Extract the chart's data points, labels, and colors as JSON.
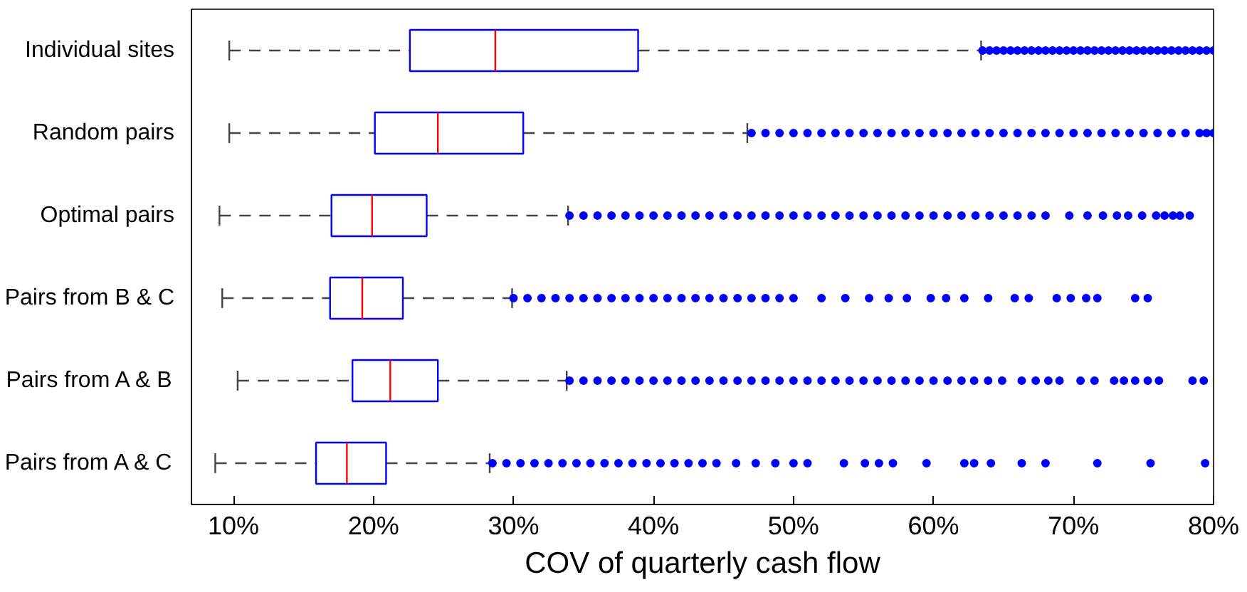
{
  "chart_data": {
    "type": "box",
    "orientation": "horizontal",
    "xlabel": "COV of quarterly cash flow",
    "categories": [
      "Individual sites",
      "Random pairs",
      "Optimal pairs",
      "Pairs from B & C",
      "Pairs from A & B",
      "Pairs from A & C"
    ],
    "xlim": [
      7,
      80
    ],
    "xticks": [
      {
        "value": 10,
        "label": "10%"
      },
      {
        "value": 20,
        "label": "20%"
      },
      {
        "value": 30,
        "label": "30%"
      },
      {
        "value": 40,
        "label": "40%"
      },
      {
        "value": 50,
        "label": "50%"
      },
      {
        "value": 60,
        "label": "60%"
      },
      {
        "value": 70,
        "label": "70%"
      },
      {
        "value": 80,
        "label": "80%"
      }
    ],
    "grid": false,
    "marker": "circle",
    "series": [
      {
        "color": "#0000ff",
        "boxes": [
          {
            "low": 9.7,
            "q1": 22.6,
            "median": 28.7,
            "q3": 38.9,
            "high": 63.4,
            "outliers": [
              63.5,
              64,
              64.5,
              65,
              65.5,
              66,
              66.5,
              67,
              67.5,
              68,
              68.5,
              69,
              69.5,
              70,
              70.5,
              71,
              71.5,
              72,
              72.5,
              73,
              73.5,
              74,
              74.5,
              75,
              75.5,
              76,
              76.5,
              77,
              77.5,
              78,
              78.5,
              79,
              79.5,
              80
            ]
          },
          {
            "low": 9.7,
            "q1": 20.1,
            "median": 24.6,
            "q3": 30.7,
            "high": 46.7,
            "outliers": [
              47,
              48,
              49,
              50,
              51,
              52,
              53,
              54,
              55,
              56,
              57,
              58,
              59,
              60,
              61,
              62,
              63,
              64,
              65,
              66,
              67,
              68,
              69,
              70,
              71,
              72,
              73,
              74,
              75,
              76,
              77,
              78,
              79,
              79.5,
              80
            ]
          },
          {
            "low": 9.0,
            "q1": 17.0,
            "median": 19.9,
            "q3": 23.8,
            "high": 33.9,
            "outliers": [
              34,
              35,
              36,
              37,
              38,
              39,
              40,
              41,
              42,
              43,
              44,
              45,
              46,
              47,
              48,
              49,
              50,
              51,
              52,
              53,
              54,
              55,
              56,
              57,
              58,
              59,
              60,
              61,
              62,
              63,
              64,
              65,
              66,
              67,
              68.0,
              69.7,
              71.0,
              72.1,
              73.1,
              73.9,
              74.9,
              75.9,
              76.5,
              77.1,
              77.6,
              78.3
            ]
          },
          {
            "low": 9.2,
            "q1": 16.9,
            "median": 19.2,
            "q3": 22.1,
            "high": 29.9,
            "outliers": [
              30,
              31,
              32,
              33,
              34,
              35,
              36,
              37,
              38,
              39,
              40,
              41,
              42,
              43,
              44,
              45,
              46,
              47,
              48,
              49,
              50.0,
              52.0,
              53.7,
              55.4,
              56.8,
              58.1,
              59.8,
              60.9,
              62.2,
              63.9,
              65.8,
              66.8,
              68.8,
              69.8,
              70.9,
              71.7,
              74.4,
              75.3
            ]
          },
          {
            "low": 10.3,
            "q1": 18.5,
            "median": 21.2,
            "q3": 24.6,
            "high": 33.8,
            "outliers": [
              34,
              35,
              36,
              37,
              38,
              39,
              40,
              41,
              42,
              43,
              44,
              45,
              46,
              47,
              48,
              49,
              50,
              51,
              52,
              53,
              54,
              55,
              56,
              57,
              58,
              59,
              60,
              61,
              62,
              62.9,
              63.9,
              64.9,
              66.3,
              67.3,
              68.2,
              69.0,
              70.5,
              71.5,
              72.9,
              73.6,
              74.4,
              75.3,
              76.1,
              78.5,
              79.3
            ]
          },
          {
            "low": 8.7,
            "q1": 15.9,
            "median": 18.1,
            "q3": 20.9,
            "high": 28.3,
            "outliers": [
              28.5,
              29.5,
              30.5,
              31.5,
              32.5,
              33.5,
              34.5,
              35.5,
              36.5,
              37.5,
              38.5,
              39.5,
              40.5,
              41.5,
              42.5,
              43.5,
              44.5,
              45.9,
              47.3,
              48.7,
              50.0,
              51.0,
              53.6,
              55.1,
              56.1,
              57.1,
              59.5,
              62.2,
              62.9,
              64.1,
              66.3,
              68.0,
              71.7,
              75.5,
              79.4
            ]
          }
        ]
      }
    ]
  }
}
